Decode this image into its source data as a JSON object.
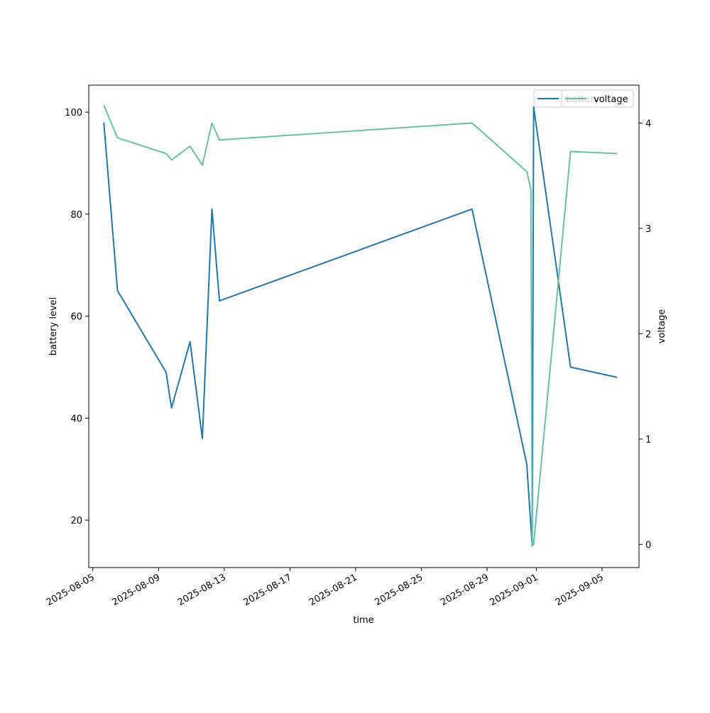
{
  "chart_data": {
    "type": "line",
    "xlabel": "time",
    "ylabel_left": "battery level",
    "ylabel_right": "voltage",
    "xlim": [
      "2025-08-04T18:00",
      "2025-09-07T06:00"
    ],
    "ylim_left": [
      10.7,
      105.3
    ],
    "ylim_right": [
      -0.22,
      4.36
    ],
    "x_ticks": [
      "2025-08-05",
      "2025-08-09",
      "2025-08-13",
      "2025-08-17",
      "2025-08-21",
      "2025-08-25",
      "2025-08-29",
      "2025-09-01",
      "2025-09-05"
    ],
    "y_ticks_left": [
      20,
      40,
      60,
      80,
      100
    ],
    "y_ticks_right": [
      0,
      1,
      2,
      3,
      4
    ],
    "legend": {
      "position": "upper right",
      "entries": [
        "battery",
        "voltage"
      ]
    },
    "series": [
      {
        "name": "battery",
        "axis": "left",
        "color": "#1f77b4",
        "points": [
          {
            "x": "2025-08-05T16:00",
            "y": 98
          },
          {
            "x": "2025-08-06T12:00",
            "y": 65
          },
          {
            "x": "2025-08-09T11:00",
            "y": 49
          },
          {
            "x": "2025-08-09T19:00",
            "y": 42
          },
          {
            "x": "2025-08-10T22:00",
            "y": 55
          },
          {
            "x": "2025-08-11T16:00",
            "y": 36
          },
          {
            "x": "2025-08-12T06:00",
            "y": 81
          },
          {
            "x": "2025-08-12T17:00",
            "y": 63
          },
          {
            "x": "2025-08-28T02:00",
            "y": 81
          },
          {
            "x": "2025-08-31T10:00",
            "y": 31
          },
          {
            "x": "2025-08-31T18:00",
            "y": 15
          },
          {
            "x": "2025-08-31T20:00",
            "y": 101
          },
          {
            "x": "2025-09-03T02:00",
            "y": 50
          },
          {
            "x": "2025-09-05T22:00",
            "y": 48
          }
        ]
      },
      {
        "name": "voltage",
        "axis": "right",
        "color": "#66c2a5",
        "points": [
          {
            "x": "2025-08-05T16:00",
            "y": 4.17
          },
          {
            "x": "2025-08-06T12:00",
            "y": 3.86
          },
          {
            "x": "2025-08-09T11:00",
            "y": 3.71
          },
          {
            "x": "2025-08-09T19:00",
            "y": 3.65
          },
          {
            "x": "2025-08-10T22:00",
            "y": 3.78
          },
          {
            "x": "2025-08-11T16:00",
            "y": 3.6
          },
          {
            "x": "2025-08-12T06:00",
            "y": 4.0
          },
          {
            "x": "2025-08-12T17:00",
            "y": 3.84
          },
          {
            "x": "2025-08-28T02:00",
            "y": 4.0
          },
          {
            "x": "2025-08-31T10:00",
            "y": 3.54
          },
          {
            "x": "2025-08-31T16:00",
            "y": 3.37
          },
          {
            "x": "2025-08-31T18:00",
            "y": 0.0
          },
          {
            "x": "2025-08-31T20:00",
            "y": 0.0
          },
          {
            "x": "2025-09-03T02:00",
            "y": 3.73
          },
          {
            "x": "2025-09-05T22:00",
            "y": 3.71
          }
        ]
      }
    ]
  }
}
